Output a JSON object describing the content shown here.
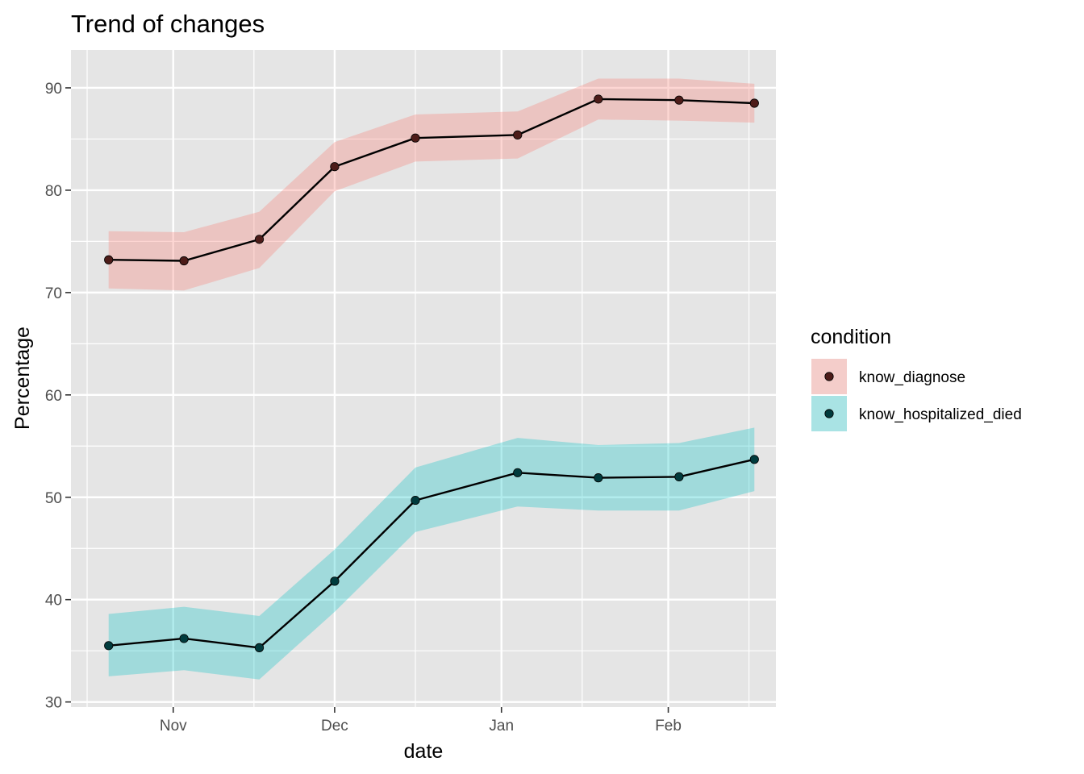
{
  "chart_data": {
    "type": "line",
    "title": "Trend of changes",
    "xlabel": "date",
    "ylabel": "Percentage",
    "x_axis_type": "date",
    "xlim": [
      "2020-10-13",
      "2021-02-21"
    ],
    "ylim": [
      29.5,
      93.7
    ],
    "x_ticks": [
      {
        "date": "2020-11-01",
        "label": "Nov"
      },
      {
        "date": "2020-12-01",
        "label": "Dec"
      },
      {
        "date": "2021-01-01",
        "label": "Jan"
      },
      {
        "date": "2021-02-01",
        "label": "Feb"
      }
    ],
    "x_minor_ticks": [
      "2020-10-16",
      "2020-11-16",
      "2020-12-16",
      "2021-01-16",
      "2021-02-16"
    ],
    "y_ticks": [
      30,
      40,
      50,
      60,
      70,
      80,
      90
    ],
    "y_minor_ticks": [
      35,
      45,
      55,
      65,
      75,
      85
    ],
    "grid": true,
    "legend": {
      "title": "condition",
      "position": "right"
    },
    "x": [
      "2020-10-20",
      "2020-11-03",
      "2020-11-17",
      "2020-12-01",
      "2020-12-16",
      "2021-01-04",
      "2021-01-19",
      "2021-02-03",
      "2021-02-17"
    ],
    "series": [
      {
        "name": "know_diagnose",
        "values": [
          73.2,
          73.1,
          75.2,
          82.3,
          85.1,
          85.4,
          88.9,
          88.8,
          88.5
        ],
        "lower": [
          70.4,
          70.2,
          72.4,
          79.9,
          82.8,
          83.1,
          86.9,
          86.8,
          86.6
        ],
        "upper": [
          76.0,
          75.9,
          77.9,
          84.7,
          87.4,
          87.7,
          90.9,
          90.9,
          90.4
        ],
        "ribbon_color": "#f8766d",
        "point_color": "#4d1c19"
      },
      {
        "name": "know_hospitalized_died",
        "values": [
          35.5,
          36.2,
          35.3,
          41.8,
          49.7,
          52.4,
          51.9,
          52.0,
          53.7
        ],
        "lower": [
          32.5,
          33.1,
          32.2,
          38.8,
          46.6,
          49.1,
          48.7,
          48.7,
          50.6
        ],
        "upper": [
          38.6,
          39.3,
          38.4,
          44.9,
          52.9,
          55.8,
          55.1,
          55.3,
          56.8
        ],
        "ribbon_color": "#00bfc4",
        "point_color": "#003b3d"
      }
    ],
    "line_color": "#000000",
    "panel_background": "#e5e5e5",
    "grid_color": "#ffffff"
  }
}
